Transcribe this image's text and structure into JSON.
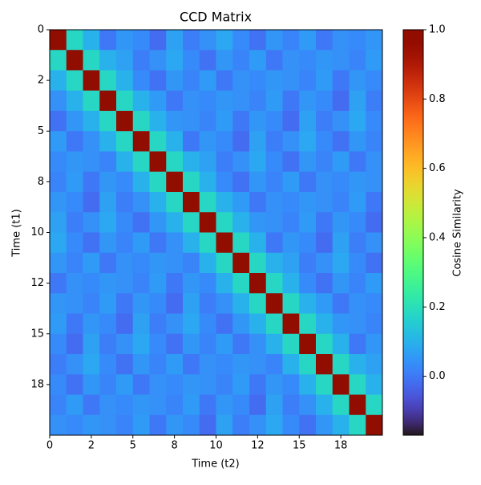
{
  "chart_data": {
    "type": "heatmap",
    "title": "CCD Matrix",
    "x_label": "Time (t2)",
    "y_label": "Time (t1)",
    "colorbar_label": "Cosine Similarity",
    "colormap": "turbo",
    "xlim": [
      0,
      20
    ],
    "ylim": [
      20,
      0
    ],
    "xticks": [
      0,
      {
        "value": 2.5,
        "label": "2"
      },
      5,
      {
        "value": 7.5,
        "label": "8"
      },
      10,
      {
        "value": 12.5,
        "label": "12"
      },
      15,
      {
        "value": 17.5,
        "label": "18"
      }
    ],
    "yticks": [
      0,
      {
        "value": 2.5,
        "label": "2"
      },
      5,
      {
        "value": 7.5,
        "label": "8"
      },
      10,
      {
        "value": 12.5,
        "label": "12"
      },
      15,
      {
        "value": 17.5,
        "label": "18"
      }
    ],
    "clim": [
      -0.17,
      1.0
    ],
    "cticks": [
      {
        "value": 0,
        "label": "0.0"
      },
      0.2,
      0.4,
      0.6,
      0.8,
      {
        "value": 1,
        "label": "1.0"
      }
    ],
    "z": [
      [
        1.0,
        0.18,
        0.1,
        0.0,
        0.05,
        0.03,
        -0.02,
        0.07,
        0.01,
        0.04,
        0.08,
        0.03,
        -0.01,
        0.05,
        0.02,
        0.06,
        0.0,
        0.04,
        0.03,
        0.05
      ],
      [
        0.18,
        1.0,
        0.18,
        0.1,
        0.07,
        0.01,
        0.04,
        0.08,
        0.03,
        -0.01,
        0.05,
        0.02,
        0.06,
        0.0,
        0.04,
        0.03,
        0.05,
        0.04,
        0.02,
        0.06
      ],
      [
        0.1,
        0.18,
        1.0,
        0.18,
        0.1,
        0.03,
        -0.01,
        0.05,
        0.02,
        0.06,
        0.0,
        0.04,
        0.03,
        0.05,
        0.04,
        0.02,
        0.06,
        0.0,
        0.05,
        0.03
      ],
      [
        0.04,
        0.1,
        0.18,
        1.0,
        0.18,
        0.1,
        0.06,
        0.0,
        0.04,
        0.03,
        0.05,
        0.04,
        0.02,
        0.06,
        0.0,
        0.05,
        0.03,
        -0.02,
        0.07,
        0.01
      ],
      [
        -0.01,
        0.05,
        0.1,
        0.18,
        1.0,
        0.18,
        0.1,
        0.05,
        0.04,
        0.02,
        0.06,
        0.0,
        0.05,
        0.03,
        -0.02,
        0.07,
        0.01,
        0.04,
        0.08,
        0.03
      ],
      [
        0.06,
        0.0,
        0.04,
        0.1,
        0.18,
        1.0,
        0.18,
        0.1,
        0.0,
        0.05,
        0.03,
        -0.02,
        0.07,
        0.01,
        0.04,
        0.08,
        0.03,
        -0.01,
        0.05,
        0.02
      ],
      [
        0.03,
        0.05,
        0.04,
        0.02,
        0.1,
        0.18,
        1.0,
        0.18,
        0.1,
        0.07,
        0.01,
        0.04,
        0.08,
        0.03,
        -0.01,
        0.05,
        0.02,
        0.06,
        0.0,
        0.04
      ],
      [
        0.02,
        0.06,
        0.0,
        0.05,
        0.03,
        0.1,
        0.18,
        1.0,
        0.18,
        0.1,
        0.03,
        -0.01,
        0.05,
        0.02,
        0.06,
        0.0,
        0.04,
        0.03,
        0.05,
        0.04
      ],
      [
        0.05,
        0.03,
        -0.02,
        0.07,
        0.01,
        0.04,
        0.1,
        0.18,
        1.0,
        0.18,
        0.1,
        0.06,
        0.0,
        0.04,
        0.03,
        0.05,
        0.04,
        0.02,
        0.06,
        0.0
      ],
      [
        0.07,
        0.01,
        0.04,
        0.08,
        0.03,
        -0.01,
        0.05,
        0.1,
        0.18,
        1.0,
        0.18,
        0.1,
        0.05,
        0.04,
        0.02,
        0.06,
        0.0,
        0.05,
        0.03,
        -0.02
      ],
      [
        0.08,
        0.03,
        -0.01,
        0.05,
        0.02,
        0.06,
        0.0,
        0.04,
        0.1,
        0.18,
        1.0,
        0.18,
        0.1,
        0.0,
        0.05,
        0.03,
        -0.02,
        0.07,
        0.01,
        0.04
      ],
      [
        0.05,
        0.02,
        0.06,
        0.0,
        0.04,
        0.03,
        0.05,
        0.04,
        0.02,
        0.1,
        0.18,
        1.0,
        0.18,
        0.1,
        0.07,
        0.01,
        0.04,
        0.08,
        0.03,
        -0.01
      ],
      [
        0.0,
        0.04,
        0.03,
        0.05,
        0.04,
        0.02,
        0.06,
        0.0,
        0.05,
        0.03,
        0.1,
        0.18,
        1.0,
        0.18,
        0.1,
        0.03,
        -0.01,
        0.05,
        0.02,
        0.06
      ],
      [
        0.05,
        0.04,
        0.02,
        0.06,
        0.0,
        0.05,
        0.03,
        -0.02,
        0.07,
        0.01,
        0.04,
        0.1,
        0.18,
        1.0,
        0.18,
        0.1,
        0.06,
        0.0,
        0.04,
        0.03
      ],
      [
        0.06,
        0.0,
        0.05,
        0.03,
        -0.02,
        0.07,
        0.01,
        0.04,
        0.08,
        0.03,
        -0.01,
        0.05,
        0.1,
        0.18,
        1.0,
        0.18,
        0.1,
        0.05,
        0.04,
        0.02
      ],
      [
        0.03,
        -0.02,
        0.07,
        0.01,
        0.04,
        0.08,
        0.03,
        -0.01,
        0.05,
        0.02,
        0.06,
        0.0,
        0.04,
        0.1,
        0.18,
        1.0,
        0.18,
        0.1,
        0.0,
        0.05
      ],
      [
        0.01,
        0.04,
        0.08,
        0.03,
        -0.01,
        0.05,
        0.02,
        0.06,
        0.0,
        0.04,
        0.03,
        0.05,
        0.04,
        0.02,
        0.1,
        0.18,
        1.0,
        0.18,
        0.1,
        0.07
      ],
      [
        0.03,
        -0.01,
        0.05,
        0.02,
        0.06,
        0.0,
        0.04,
        0.03,
        0.05,
        0.04,
        0.02,
        0.06,
        0.0,
        0.05,
        0.03,
        0.1,
        0.18,
        1.0,
        0.18,
        0.1
      ],
      [
        0.02,
        0.06,
        0.0,
        0.04,
        0.03,
        0.05,
        0.04,
        0.02,
        0.06,
        0.0,
        0.05,
        0.03,
        -0.02,
        0.07,
        0.01,
        0.04,
        0.1,
        0.18,
        1.0,
        0.18
      ],
      [
        0.04,
        0.03,
        0.05,
        0.04,
        0.02,
        0.06,
        0.0,
        0.05,
        0.03,
        -0.02,
        0.07,
        0.01,
        0.04,
        0.08,
        0.03,
        -0.01,
        0.05,
        0.1,
        0.18,
        1.0
      ]
    ]
  }
}
